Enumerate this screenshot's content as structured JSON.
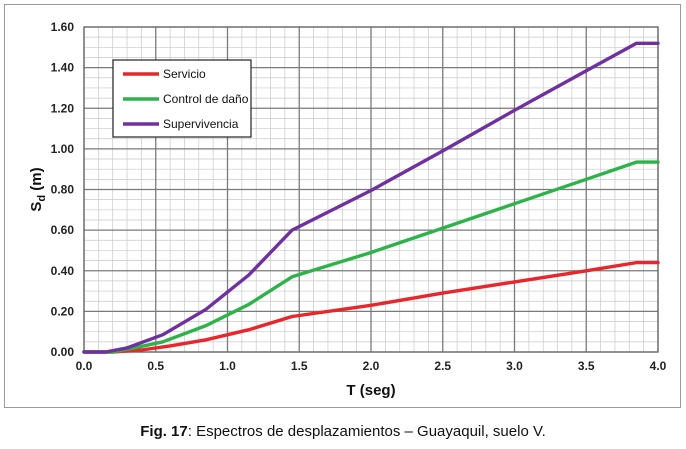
{
  "chart_data": {
    "type": "line",
    "xlabel": "T (seg)",
    "ylabel_main": "S",
    "ylabel_sub": "d",
    "ylabel_unit": " (m)",
    "xlim": [
      0,
      4
    ],
    "ylim": [
      0,
      1.6
    ],
    "x_ticks": [
      "0.0",
      "0.5",
      "1.0",
      "1.5",
      "2.0",
      "2.5",
      "3.0",
      "3.5",
      "4.0"
    ],
    "y_ticks": [
      "0.00",
      "0.20",
      "0.40",
      "0.60",
      "0.80",
      "1.00",
      "1.20",
      "1.40",
      "1.60"
    ],
    "grid": true,
    "legend_position": "top-left",
    "series": [
      {
        "name": "Servicio",
        "color": "#e8262b",
        "points": [
          [
            0,
            0
          ],
          [
            0.2,
            0
          ],
          [
            0.4,
            0.01
          ],
          [
            0.6,
            0.03
          ],
          [
            0.85,
            0.06
          ],
          [
            1.15,
            0.11
          ],
          [
            1.45,
            0.175
          ],
          [
            2.0,
            0.23
          ],
          [
            2.5,
            0.29
          ],
          [
            3.0,
            0.345
          ],
          [
            3.5,
            0.4
          ],
          [
            3.85,
            0.44
          ],
          [
            4.0,
            0.44
          ]
        ]
      },
      {
        "name": "Control de daño",
        "color": "#2db34a",
        "points": [
          [
            0,
            0
          ],
          [
            0.2,
            0
          ],
          [
            0.35,
            0.02
          ],
          [
            0.55,
            0.05
          ],
          [
            0.85,
            0.13
          ],
          [
            1.15,
            0.235
          ],
          [
            1.45,
            0.37
          ],
          [
            2.0,
            0.49
          ],
          [
            2.5,
            0.61
          ],
          [
            3.0,
            0.73
          ],
          [
            3.5,
            0.85
          ],
          [
            3.85,
            0.935
          ],
          [
            4.0,
            0.935
          ]
        ]
      },
      {
        "name": "Supervivencia",
        "color": "#7030a0",
        "points": [
          [
            0,
            0
          ],
          [
            0.15,
            0
          ],
          [
            0.3,
            0.02
          ],
          [
            0.55,
            0.085
          ],
          [
            0.85,
            0.21
          ],
          [
            1.15,
            0.38
          ],
          [
            1.45,
            0.6
          ],
          [
            2.0,
            0.795
          ],
          [
            2.5,
            0.99
          ],
          [
            3.0,
            1.19
          ],
          [
            3.5,
            1.385
          ],
          [
            3.85,
            1.52
          ],
          [
            4.0,
            1.52
          ]
        ]
      }
    ]
  },
  "caption": {
    "label": "Fig. 17",
    "text": ": Espectros de desplazamientos – Guayaquil, suelo V."
  }
}
